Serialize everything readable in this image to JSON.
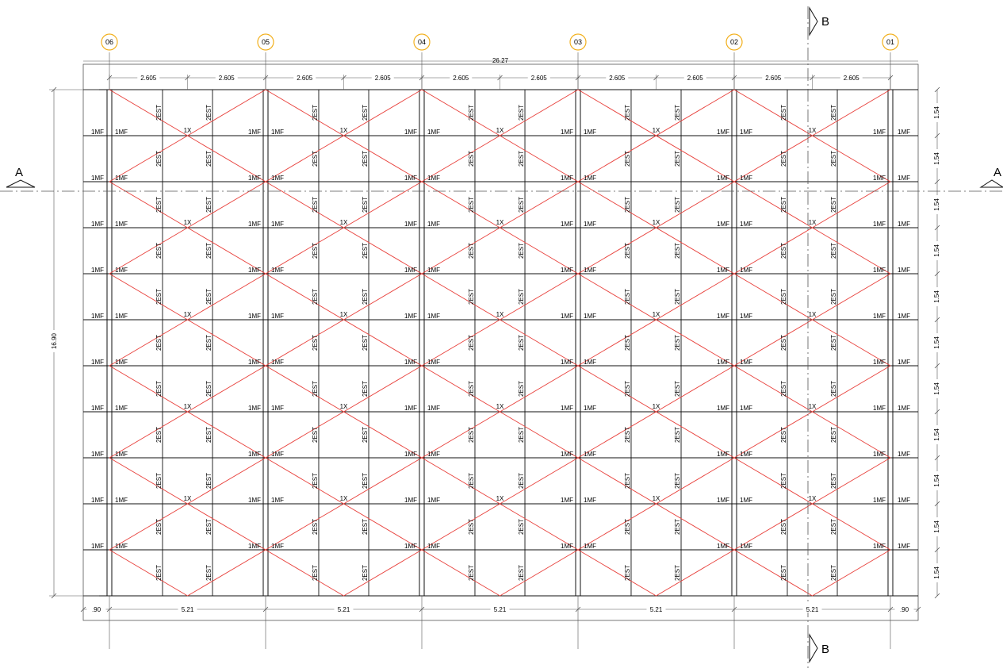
{
  "grid_axes": [
    "06",
    "05",
    "04",
    "03",
    "02",
    "01"
  ],
  "overall_width_label": "26.27",
  "overall_height_label": "16.90",
  "top_sub_dims": [
    "2.605",
    "2.605",
    "2.605",
    "2.605",
    "2.605",
    "2.605",
    "2.605",
    "2.605",
    "2.605",
    "2.605"
  ],
  "bottom_dims": [
    ".90",
    "5.21",
    "5.21",
    "5.21",
    "5.21",
    "5.21",
    ".90"
  ],
  "right_dims": [
    "1.54",
    "1.54",
    "1.54",
    "1.54",
    "1.54",
    "1.54",
    "1.54",
    "1.54",
    "1.54",
    "1.54",
    "1.54"
  ],
  "section_a": "A",
  "section_b": "B",
  "labels": {
    "mf": "1MF",
    "est": "2EST",
    "x": "1X"
  },
  "colors": {
    "bracing": "#e8413c",
    "axis_bubble": "#f2b01e",
    "lines": "#111111",
    "dim": "#555555"
  }
}
